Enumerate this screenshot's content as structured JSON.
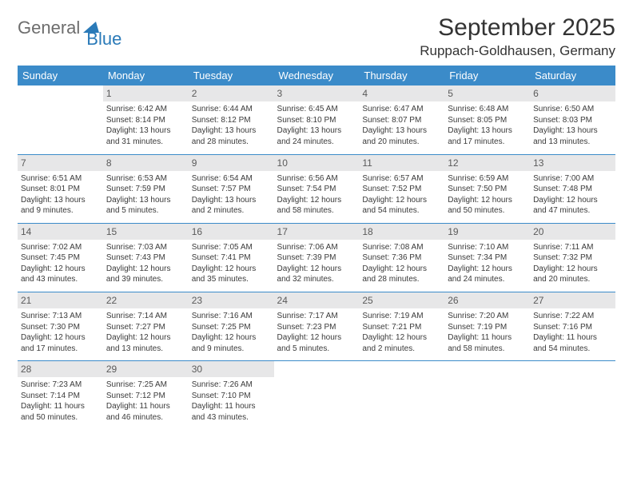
{
  "logo": {
    "text1": "General",
    "text2": "Blue"
  },
  "title": "September 2025",
  "location": "Ruppach-Goldhausen, Germany",
  "weekdays": [
    "Sunday",
    "Monday",
    "Tuesday",
    "Wednesday",
    "Thursday",
    "Friday",
    "Saturday"
  ],
  "colors": {
    "header_bg": "#3b8bc9",
    "header_text": "#ffffff",
    "daynum_bg": "#e7e7e8",
    "border": "#3b8bc9",
    "logo_gray": "#6d6d6d",
    "logo_blue": "#2a7ab8"
  },
  "grid": [
    [
      null,
      {
        "n": "1",
        "sr": "Sunrise: 6:42 AM",
        "ss": "Sunset: 8:14 PM",
        "d1": "Daylight: 13 hours",
        "d2": "and 31 minutes."
      },
      {
        "n": "2",
        "sr": "Sunrise: 6:44 AM",
        "ss": "Sunset: 8:12 PM",
        "d1": "Daylight: 13 hours",
        "d2": "and 28 minutes."
      },
      {
        "n": "3",
        "sr": "Sunrise: 6:45 AM",
        "ss": "Sunset: 8:10 PM",
        "d1": "Daylight: 13 hours",
        "d2": "and 24 minutes."
      },
      {
        "n": "4",
        "sr": "Sunrise: 6:47 AM",
        "ss": "Sunset: 8:07 PM",
        "d1": "Daylight: 13 hours",
        "d2": "and 20 minutes."
      },
      {
        "n": "5",
        "sr": "Sunrise: 6:48 AM",
        "ss": "Sunset: 8:05 PM",
        "d1": "Daylight: 13 hours",
        "d2": "and 17 minutes."
      },
      {
        "n": "6",
        "sr": "Sunrise: 6:50 AM",
        "ss": "Sunset: 8:03 PM",
        "d1": "Daylight: 13 hours",
        "d2": "and 13 minutes."
      }
    ],
    [
      {
        "n": "7",
        "sr": "Sunrise: 6:51 AM",
        "ss": "Sunset: 8:01 PM",
        "d1": "Daylight: 13 hours",
        "d2": "and 9 minutes."
      },
      {
        "n": "8",
        "sr": "Sunrise: 6:53 AM",
        "ss": "Sunset: 7:59 PM",
        "d1": "Daylight: 13 hours",
        "d2": "and 5 minutes."
      },
      {
        "n": "9",
        "sr": "Sunrise: 6:54 AM",
        "ss": "Sunset: 7:57 PM",
        "d1": "Daylight: 13 hours",
        "d2": "and 2 minutes."
      },
      {
        "n": "10",
        "sr": "Sunrise: 6:56 AM",
        "ss": "Sunset: 7:54 PM",
        "d1": "Daylight: 12 hours",
        "d2": "and 58 minutes."
      },
      {
        "n": "11",
        "sr": "Sunrise: 6:57 AM",
        "ss": "Sunset: 7:52 PM",
        "d1": "Daylight: 12 hours",
        "d2": "and 54 minutes."
      },
      {
        "n": "12",
        "sr": "Sunrise: 6:59 AM",
        "ss": "Sunset: 7:50 PM",
        "d1": "Daylight: 12 hours",
        "d2": "and 50 minutes."
      },
      {
        "n": "13",
        "sr": "Sunrise: 7:00 AM",
        "ss": "Sunset: 7:48 PM",
        "d1": "Daylight: 12 hours",
        "d2": "and 47 minutes."
      }
    ],
    [
      {
        "n": "14",
        "sr": "Sunrise: 7:02 AM",
        "ss": "Sunset: 7:45 PM",
        "d1": "Daylight: 12 hours",
        "d2": "and 43 minutes."
      },
      {
        "n": "15",
        "sr": "Sunrise: 7:03 AM",
        "ss": "Sunset: 7:43 PM",
        "d1": "Daylight: 12 hours",
        "d2": "and 39 minutes."
      },
      {
        "n": "16",
        "sr": "Sunrise: 7:05 AM",
        "ss": "Sunset: 7:41 PM",
        "d1": "Daylight: 12 hours",
        "d2": "and 35 minutes."
      },
      {
        "n": "17",
        "sr": "Sunrise: 7:06 AM",
        "ss": "Sunset: 7:39 PM",
        "d1": "Daylight: 12 hours",
        "d2": "and 32 minutes."
      },
      {
        "n": "18",
        "sr": "Sunrise: 7:08 AM",
        "ss": "Sunset: 7:36 PM",
        "d1": "Daylight: 12 hours",
        "d2": "and 28 minutes."
      },
      {
        "n": "19",
        "sr": "Sunrise: 7:10 AM",
        "ss": "Sunset: 7:34 PM",
        "d1": "Daylight: 12 hours",
        "d2": "and 24 minutes."
      },
      {
        "n": "20",
        "sr": "Sunrise: 7:11 AM",
        "ss": "Sunset: 7:32 PM",
        "d1": "Daylight: 12 hours",
        "d2": "and 20 minutes."
      }
    ],
    [
      {
        "n": "21",
        "sr": "Sunrise: 7:13 AM",
        "ss": "Sunset: 7:30 PM",
        "d1": "Daylight: 12 hours",
        "d2": "and 17 minutes."
      },
      {
        "n": "22",
        "sr": "Sunrise: 7:14 AM",
        "ss": "Sunset: 7:27 PM",
        "d1": "Daylight: 12 hours",
        "d2": "and 13 minutes."
      },
      {
        "n": "23",
        "sr": "Sunrise: 7:16 AM",
        "ss": "Sunset: 7:25 PM",
        "d1": "Daylight: 12 hours",
        "d2": "and 9 minutes."
      },
      {
        "n": "24",
        "sr": "Sunrise: 7:17 AM",
        "ss": "Sunset: 7:23 PM",
        "d1": "Daylight: 12 hours",
        "d2": "and 5 minutes."
      },
      {
        "n": "25",
        "sr": "Sunrise: 7:19 AM",
        "ss": "Sunset: 7:21 PM",
        "d1": "Daylight: 12 hours",
        "d2": "and 2 minutes."
      },
      {
        "n": "26",
        "sr": "Sunrise: 7:20 AM",
        "ss": "Sunset: 7:19 PM",
        "d1": "Daylight: 11 hours",
        "d2": "and 58 minutes."
      },
      {
        "n": "27",
        "sr": "Sunrise: 7:22 AM",
        "ss": "Sunset: 7:16 PM",
        "d1": "Daylight: 11 hours",
        "d2": "and 54 minutes."
      }
    ],
    [
      {
        "n": "28",
        "sr": "Sunrise: 7:23 AM",
        "ss": "Sunset: 7:14 PM",
        "d1": "Daylight: 11 hours",
        "d2": "and 50 minutes."
      },
      {
        "n": "29",
        "sr": "Sunrise: 7:25 AM",
        "ss": "Sunset: 7:12 PM",
        "d1": "Daylight: 11 hours",
        "d2": "and 46 minutes."
      },
      {
        "n": "30",
        "sr": "Sunrise: 7:26 AM",
        "ss": "Sunset: 7:10 PM",
        "d1": "Daylight: 11 hours",
        "d2": "and 43 minutes."
      },
      null,
      null,
      null,
      null
    ]
  ]
}
